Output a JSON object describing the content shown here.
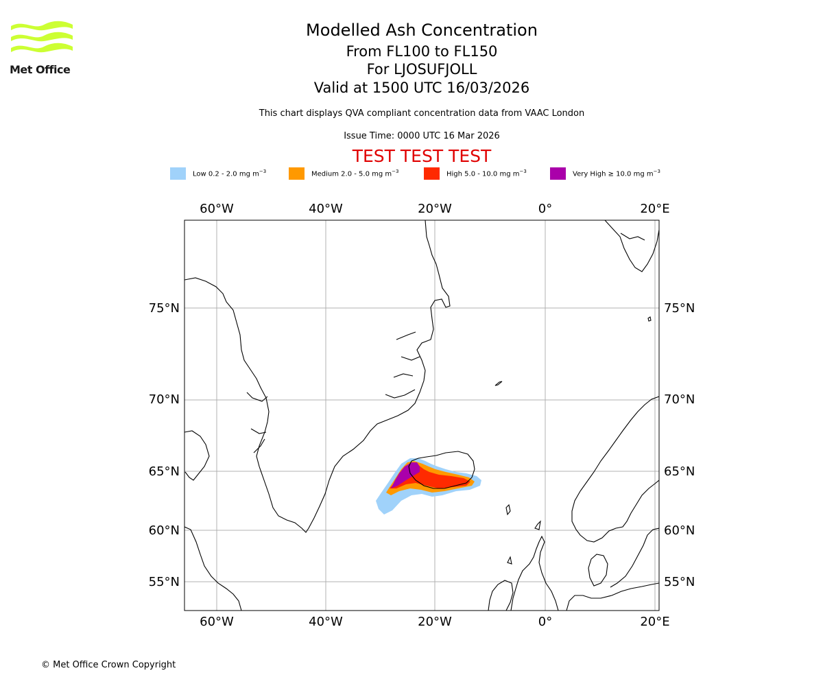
{
  "header": {
    "title": "Modelled Ash Concentration",
    "levels": "From FL100 to FL150",
    "volcano": "For LJOSUFJOLL",
    "valid": "Valid at 1500 UTC 16/03/2026",
    "description": "This chart displays QVA compliant concentration data from VAAC London",
    "issue_time": "Issue Time: 0000 UTC 16 Mar 2026",
    "test_banner": "TEST TEST TEST"
  },
  "logo": {
    "text": "Met Office",
    "color": "#ccff33"
  },
  "legend": [
    {
      "prefix": "Low 0.2 - 2.0 mg m",
      "exp": "−3",
      "color": "#a0d2fa"
    },
    {
      "prefix": "Medium 2.0 - 5.0 mg m",
      "exp": "−3",
      "color": "#ff9900"
    },
    {
      "prefix": "High 5.0 - 10.0 mg m",
      "exp": "−3",
      "color": "#ff2a00"
    },
    {
      "prefix": "Very High  ≥  10.0 mg m",
      "exp": "−3",
      "color": "#aa00aa"
    }
  ],
  "map": {
    "lon_labels": [
      "60°W",
      "40°W",
      "20°W",
      "0°",
      "20°E"
    ],
    "lat_labels": [
      "75°N",
      "70°N",
      "65°N",
      "60°N",
      "55°N"
    ],
    "longitudes": [
      -60,
      -40,
      -20,
      0,
      20
    ],
    "latitudes": [
      75,
      70,
      65,
      60,
      55
    ]
  },
  "footer": {
    "copyright": "© Met Office Crown Copyright"
  }
}
